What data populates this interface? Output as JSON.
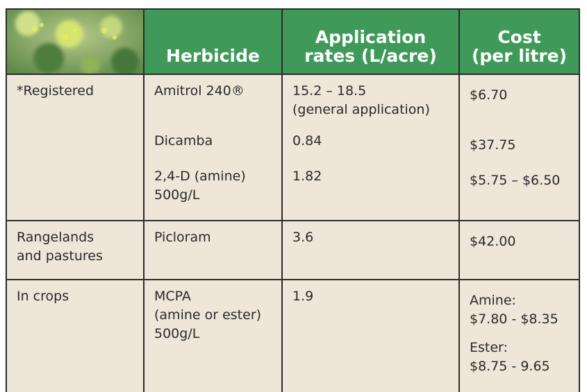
{
  "table": {
    "header": [
      [
        "Herbicide"
      ],
      [
        "Application",
        "rates (L/acre)"
      ],
      [
        "Cost",
        "(per litre)"
      ]
    ],
    "rows": [
      {
        "category": [
          "*Registered"
        ],
        "entries": [
          {
            "herbicide": [
              "Amitrol 240®"
            ],
            "rate": [
              "15.2 – 18.5",
              "(general application)"
            ],
            "cost": [
              [
                "$6.70"
              ]
            ]
          },
          {
            "herbicide": [
              "Dicamba"
            ],
            "rate": [
              "0.84"
            ],
            "cost": [
              [
                "$37.75"
              ]
            ]
          },
          {
            "herbicide": [
              "2,4-D (amine)",
              "500g/L"
            ],
            "rate": [
              "1.82"
            ],
            "cost": [
              [
                "$5.75 – $6.50"
              ]
            ]
          }
        ]
      },
      {
        "category": [
          "Rangelands",
          "and pastures"
        ],
        "entries": [
          {
            "herbicide": [
              "Picloram"
            ],
            "rate": [
              "3.6"
            ],
            "cost": [
              [
                "$42.00"
              ]
            ]
          }
        ]
      },
      {
        "category": [
          "In crops"
        ],
        "entries": [
          {
            "herbicide": [
              "MCPA",
              "(amine or ester)",
              "500g/L"
            ],
            "rate": [
              "1.9"
            ],
            "cost": [
              [
                "Amine:",
                "$7.80 - $8.35"
              ],
              [
                "Ester:",
                "$8.75 - 9.65"
              ]
            ]
          }
        ]
      }
    ]
  }
}
